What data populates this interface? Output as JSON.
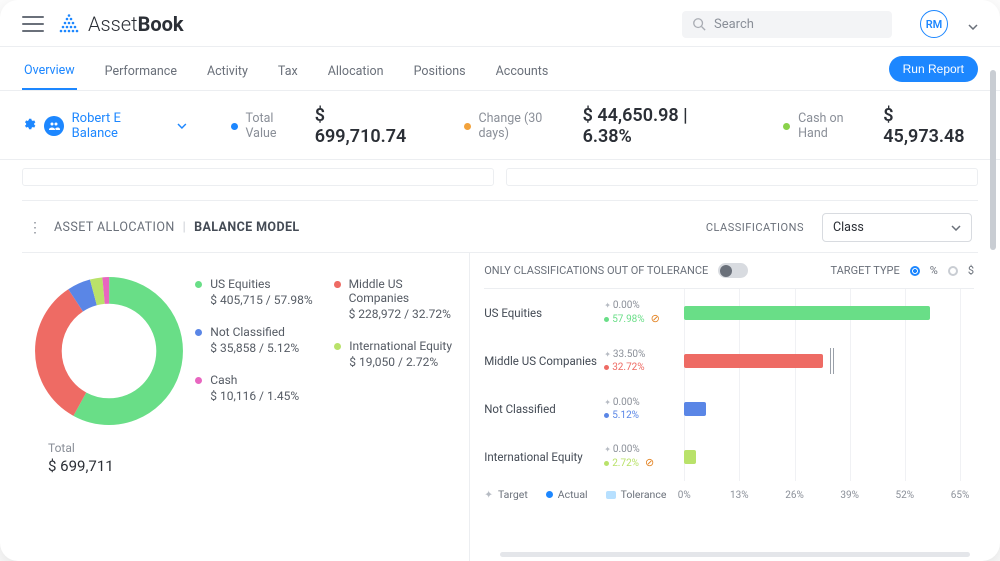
{
  "brand": {
    "name_light": "Asset",
    "name_bold": "Book",
    "dot_color": "#1d87ff"
  },
  "search": {
    "placeholder": "Search"
  },
  "avatar": {
    "initials": "RM"
  },
  "tabs": [
    {
      "label": "Overview",
      "active": true
    },
    {
      "label": "Performance",
      "active": false
    },
    {
      "label": "Activity",
      "active": false
    },
    {
      "label": "Tax",
      "active": false
    },
    {
      "label": "Allocation",
      "active": false
    },
    {
      "label": "Positions",
      "active": false
    },
    {
      "label": "Accounts",
      "active": false
    }
  ],
  "run_report_label": "Run Report",
  "client": {
    "name": "Robert E Balance"
  },
  "summary": {
    "total_value_label": "Total Value",
    "total_value": "$ 699,710.74",
    "total_dot": "#1d87ff",
    "change_label": "Change (30 days)",
    "change_value": "$ 44,650.98 | 6.38%",
    "change_dot": "#f2a23c",
    "cash_label": "Cash on Hand",
    "cash_value": "$ 45,973.48",
    "cash_dot": "#8ad24b"
  },
  "panel": {
    "title_a": "ASSET ALLOCATION",
    "title_b": "BALANCE MODEL",
    "classifications_label": "CLASSIFICATIONS",
    "select_value": "Class"
  },
  "colors": {
    "green": "#69de87",
    "red": "#ee6b64",
    "blue": "#5a86e6",
    "lime": "#b9e26a",
    "magenta": "#e866c0",
    "tolerance": "#b7e0ff"
  },
  "donut": {
    "slices": [
      {
        "key": "us_equities",
        "pct": 57.98,
        "color": "#69de87"
      },
      {
        "key": "middle_us",
        "pct": 32.72,
        "color": "#ee6b64"
      },
      {
        "key": "not_classified",
        "pct": 5.12,
        "color": "#5a86e6"
      },
      {
        "key": "intl_equity",
        "pct": 2.72,
        "color": "#b9e26a"
      },
      {
        "key": "cash",
        "pct": 1.45,
        "color": "#e866c0"
      }
    ]
  },
  "total": {
    "label": "Total",
    "amount": "$ 699,711"
  },
  "legend_left": [
    {
      "name": "US Equities",
      "value": "$ 405,715 / 57.98%",
      "color": "#69de87"
    },
    {
      "name": "Not Classified",
      "value": "$ 35,858 / 5.12%",
      "color": "#5a86e6"
    },
    {
      "name": "Cash",
      "value": "$ 10,116 / 1.45%",
      "color": "#e866c0"
    }
  ],
  "legend_right": [
    {
      "name": "Middle US Companies",
      "value": "$ 228,972 / 32.72%",
      "color": "#ee6b64"
    },
    {
      "name": "International Equity",
      "value": "$ 19,050 / 2.72%",
      "color": "#b9e26a"
    }
  ],
  "right_top": {
    "tolerance_label": "ONLY CLASSIFICATIONS OUT OF TOLERANCE",
    "target_type_label": "TARGET TYPE",
    "pct_label": "%",
    "dollar_label": "$"
  },
  "bars": {
    "x_max": 65,
    "ticks": [
      0,
      13,
      26,
      39,
      52,
      65
    ],
    "legend": {
      "target": "Target",
      "actual": "Actual",
      "tolerance": "Tolerance"
    },
    "rows": [
      {
        "name": "US Equities",
        "target": 0.0,
        "actual": 57.98,
        "color": "#69de87",
        "tolerance_at": null,
        "warn": true
      },
      {
        "name": "Middle US Companies",
        "target": 33.5,
        "actual": 32.72,
        "color": "#ee6b64",
        "tolerance_at": 34,
        "warn": false
      },
      {
        "name": "Not Classified",
        "target": 0.0,
        "actual": 5.12,
        "color": "#5a86e6",
        "tolerance_at": null,
        "warn": false
      },
      {
        "name": "International Equity",
        "target": 0.0,
        "actual": 2.72,
        "color": "#b9e26a",
        "tolerance_at": null,
        "warn": true
      }
    ]
  }
}
